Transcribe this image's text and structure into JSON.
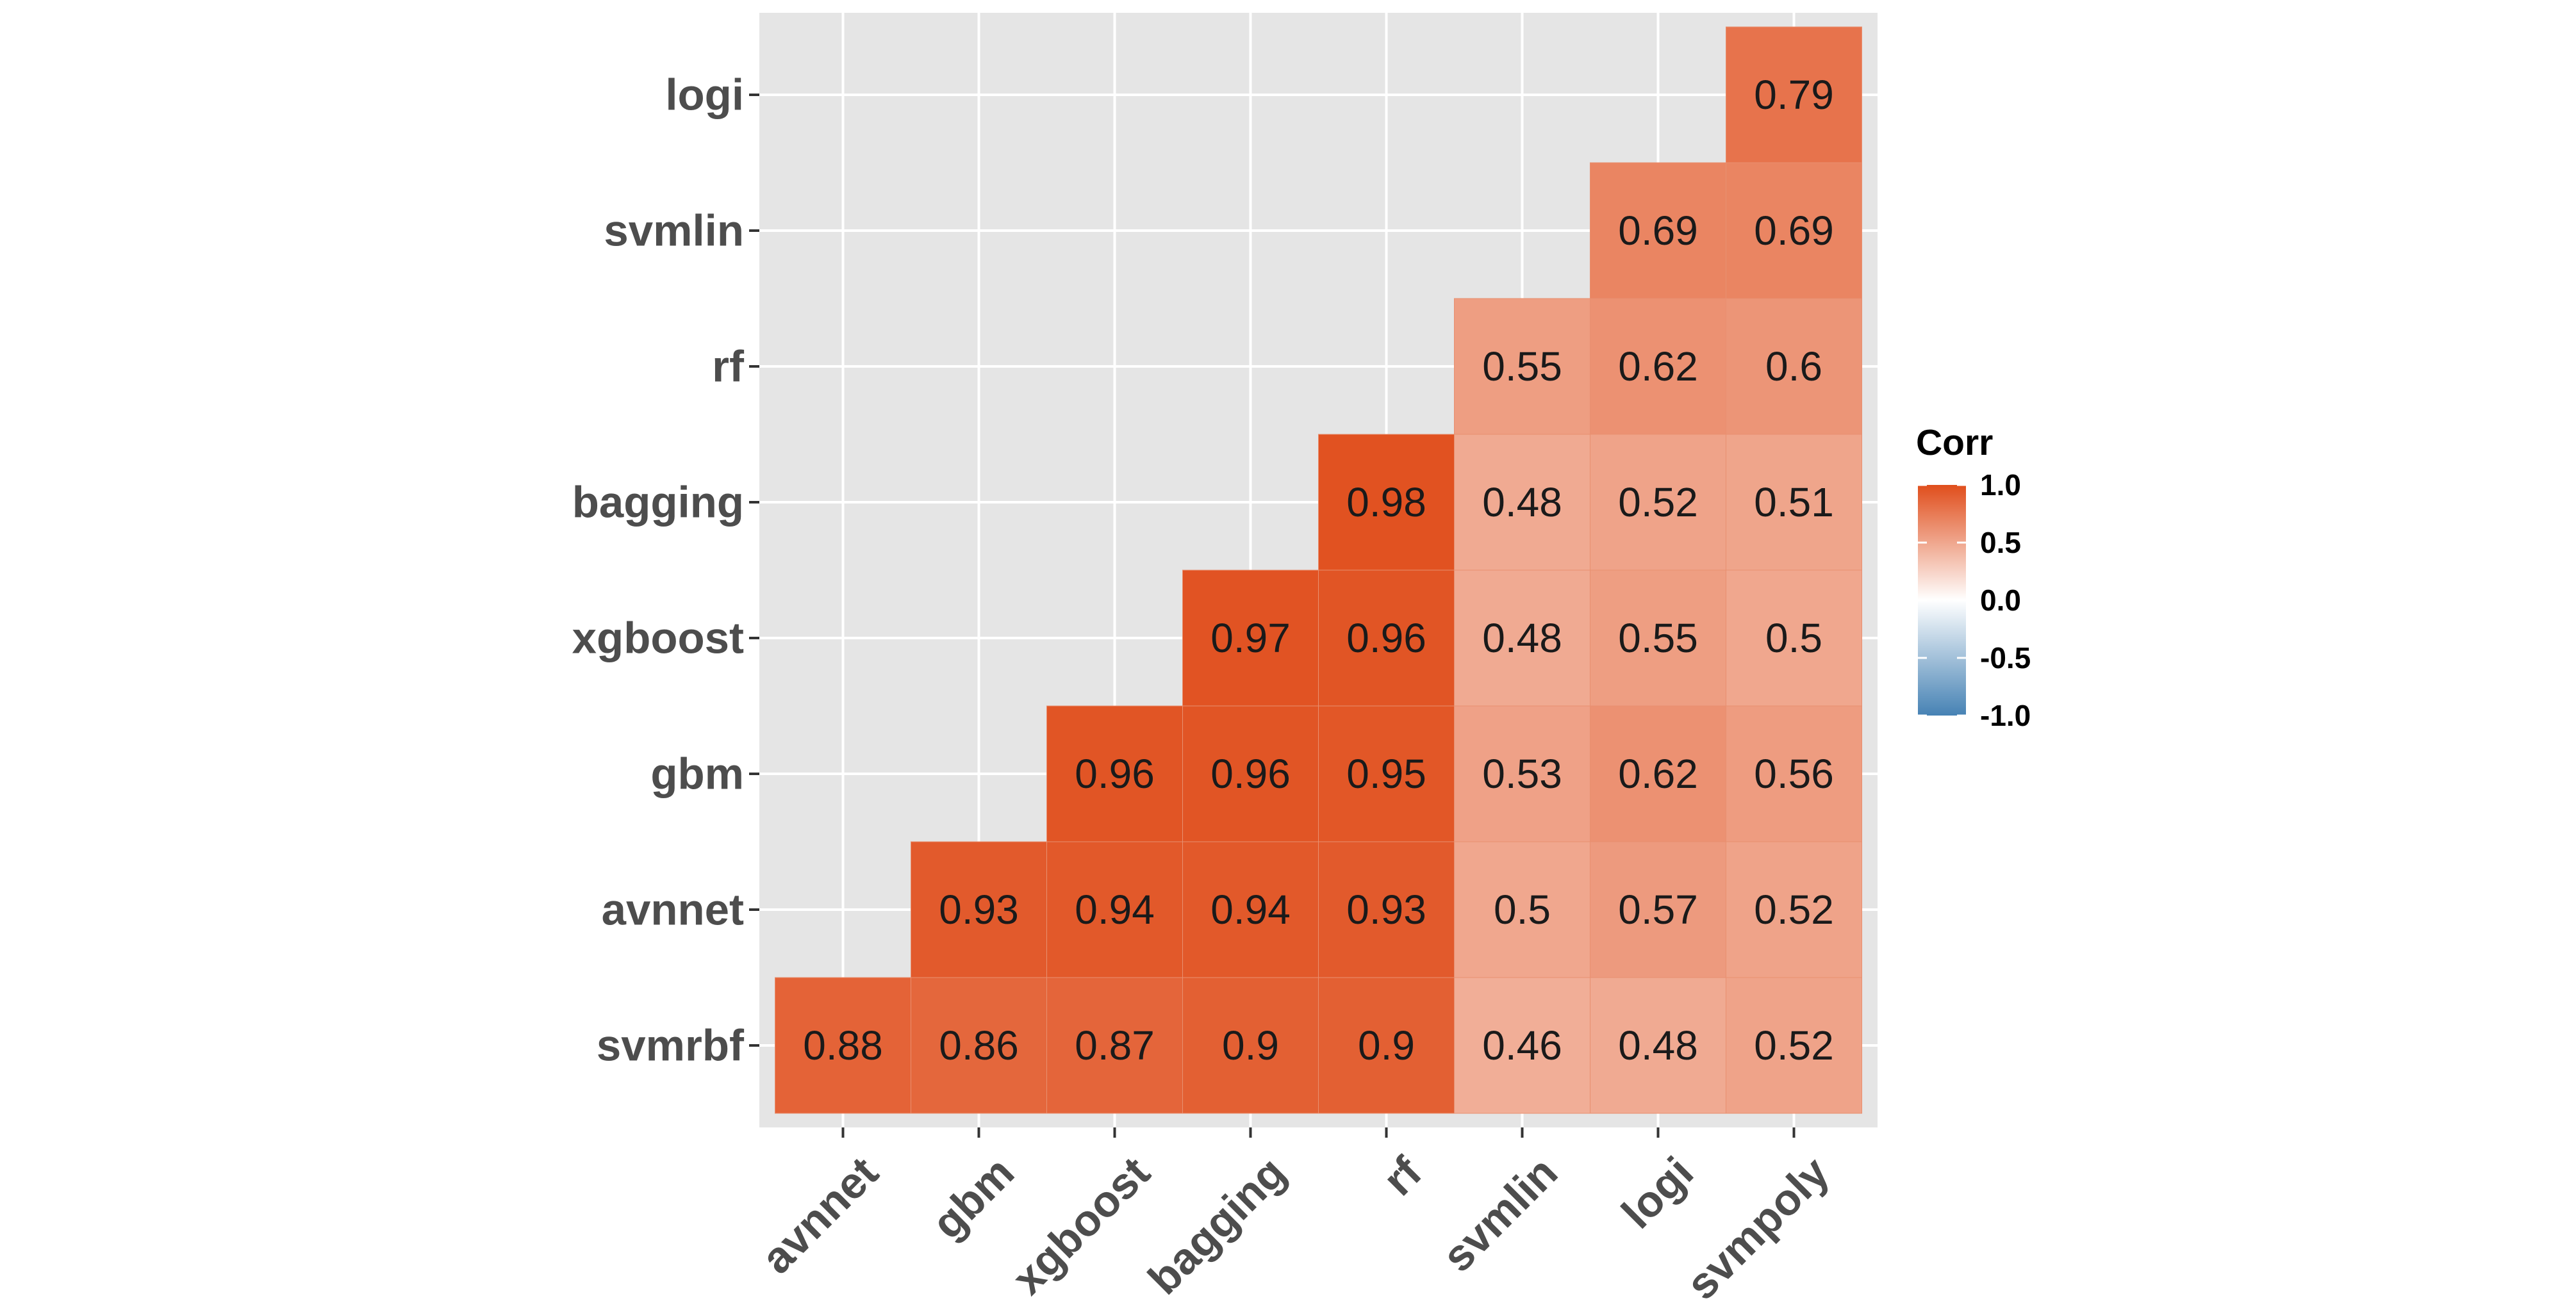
{
  "chart_data": {
    "type": "heatmap",
    "x_labels": [
      "avnnet",
      "gbm",
      "xgboost",
      "bagging",
      "rf",
      "svmlin",
      "logi",
      "svmpoly"
    ],
    "y_labels": [
      "svmrbf",
      "avnnet",
      "gbm",
      "xgboost",
      "bagging",
      "rf",
      "svmlin",
      "logi"
    ],
    "cells": [
      {
        "x": "avnnet",
        "y": "svmrbf",
        "value": 0.88,
        "label": "0.88"
      },
      {
        "x": "gbm",
        "y": "svmrbf",
        "value": 0.86,
        "label": "0.86"
      },
      {
        "x": "xgboost",
        "y": "svmrbf",
        "value": 0.87,
        "label": "0.87"
      },
      {
        "x": "bagging",
        "y": "svmrbf",
        "value": 0.9,
        "label": "0.9"
      },
      {
        "x": "rf",
        "y": "svmrbf",
        "value": 0.9,
        "label": "0.9"
      },
      {
        "x": "svmlin",
        "y": "svmrbf",
        "value": 0.46,
        "label": "0.46"
      },
      {
        "x": "logi",
        "y": "svmrbf",
        "value": 0.48,
        "label": "0.48"
      },
      {
        "x": "svmpoly",
        "y": "svmrbf",
        "value": 0.52,
        "label": "0.52"
      },
      {
        "x": "gbm",
        "y": "avnnet",
        "value": 0.93,
        "label": "0.93"
      },
      {
        "x": "xgboost",
        "y": "avnnet",
        "value": 0.94,
        "label": "0.94"
      },
      {
        "x": "bagging",
        "y": "avnnet",
        "value": 0.94,
        "label": "0.94"
      },
      {
        "x": "rf",
        "y": "avnnet",
        "value": 0.93,
        "label": "0.93"
      },
      {
        "x": "svmlin",
        "y": "avnnet",
        "value": 0.5,
        "label": "0.5"
      },
      {
        "x": "logi",
        "y": "avnnet",
        "value": 0.57,
        "label": "0.57"
      },
      {
        "x": "svmpoly",
        "y": "avnnet",
        "value": 0.52,
        "label": "0.52"
      },
      {
        "x": "xgboost",
        "y": "gbm",
        "value": 0.96,
        "label": "0.96"
      },
      {
        "x": "bagging",
        "y": "gbm",
        "value": 0.96,
        "label": "0.96"
      },
      {
        "x": "rf",
        "y": "gbm",
        "value": 0.95,
        "label": "0.95"
      },
      {
        "x": "svmlin",
        "y": "gbm",
        "value": 0.53,
        "label": "0.53"
      },
      {
        "x": "logi",
        "y": "gbm",
        "value": 0.62,
        "label": "0.62"
      },
      {
        "x": "svmpoly",
        "y": "gbm",
        "value": 0.56,
        "label": "0.56"
      },
      {
        "x": "bagging",
        "y": "xgboost",
        "value": 0.97,
        "label": "0.97"
      },
      {
        "x": "rf",
        "y": "xgboost",
        "value": 0.96,
        "label": "0.96"
      },
      {
        "x": "svmlin",
        "y": "xgboost",
        "value": 0.48,
        "label": "0.48"
      },
      {
        "x": "logi",
        "y": "xgboost",
        "value": 0.55,
        "label": "0.55"
      },
      {
        "x": "svmpoly",
        "y": "xgboost",
        "value": 0.5,
        "label": "0.5"
      },
      {
        "x": "rf",
        "y": "bagging",
        "value": 0.98,
        "label": "0.98"
      },
      {
        "x": "svmlin",
        "y": "bagging",
        "value": 0.48,
        "label": "0.48"
      },
      {
        "x": "logi",
        "y": "bagging",
        "value": 0.52,
        "label": "0.52"
      },
      {
        "x": "svmpoly",
        "y": "bagging",
        "value": 0.51,
        "label": "0.51"
      },
      {
        "x": "svmlin",
        "y": "rf",
        "value": 0.55,
        "label": "0.55"
      },
      {
        "x": "logi",
        "y": "rf",
        "value": 0.62,
        "label": "0.62"
      },
      {
        "x": "svmpoly",
        "y": "rf",
        "value": 0.6,
        "label": "0.6"
      },
      {
        "x": "logi",
        "y": "svmlin",
        "value": 0.69,
        "label": "0.69"
      },
      {
        "x": "svmpoly",
        "y": "svmlin",
        "value": 0.69,
        "label": "0.69"
      },
      {
        "x": "svmpoly",
        "y": "logi",
        "value": 0.79,
        "label": "0.79"
      }
    ],
    "legend": {
      "title": "Corr",
      "ticks": [
        {
          "value": 1.0,
          "label": "1.0"
        },
        {
          "value": 0.5,
          "label": "0.5"
        },
        {
          "value": 0.0,
          "label": "0.0"
        },
        {
          "value": -0.5,
          "label": "-0.5"
        },
        {
          "value": -1.0,
          "label": "-1.0"
        }
      ],
      "position": "right"
    },
    "scale": {
      "min": -1.0,
      "max": 1.0,
      "low_color": "#4682B4",
      "mid_color": "#FFFFFF",
      "high_color": "#E04E1C"
    },
    "panel_background": "#E5E5E5",
    "grid": true
  }
}
